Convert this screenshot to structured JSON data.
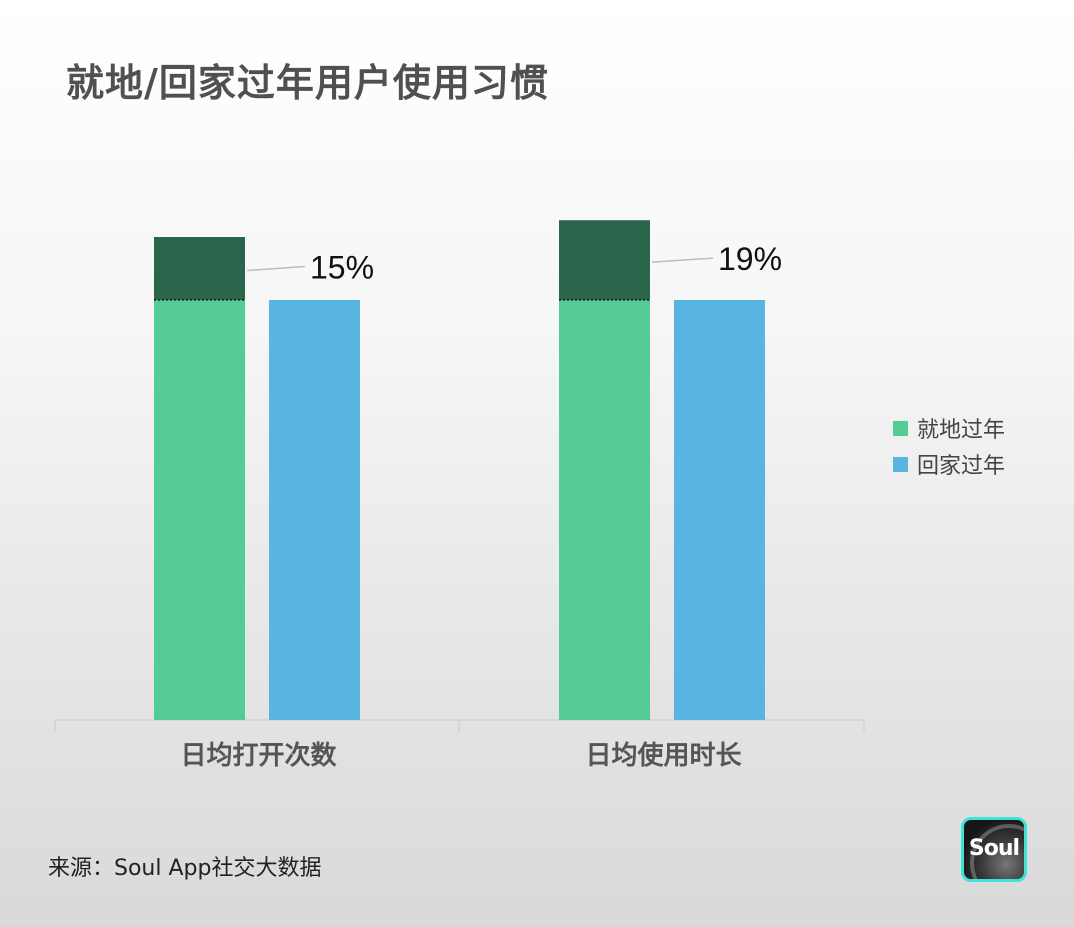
{
  "title": "就地/回家过年用户使用习惯",
  "source": "来源：Soul App社交大数据",
  "logo": {
    "text": "Soul"
  },
  "colors": {
    "local": "#55cb95",
    "home": "#58b5e2",
    "increase": "#2b664c",
    "axis": "#d6d6d6",
    "leader": "#bdbdbd"
  },
  "chart_data": {
    "type": "bar",
    "categories": [
      "日均打开次数",
      "日均使用时长"
    ],
    "series": [
      {
        "name": "就地过年",
        "values": [
          115,
          119
        ]
      },
      {
        "name": "回家过年",
        "values": [
          100,
          100
        ]
      }
    ],
    "annotations": [
      "15%",
      "19%"
    ],
    "legend_position": "right",
    "grid": false
  }
}
